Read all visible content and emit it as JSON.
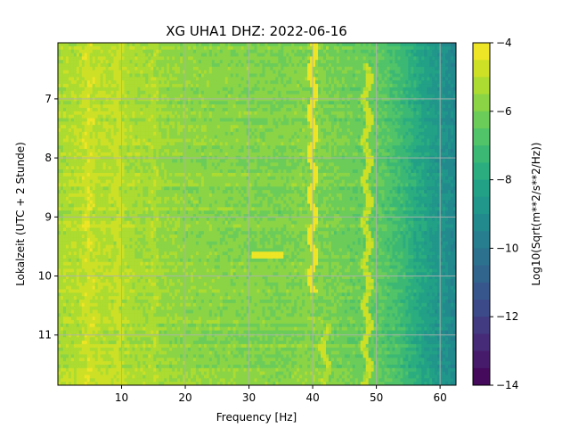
{
  "chart_data": {
    "type": "heatmap",
    "title": "XG UHA1  DHZ: 2022-06-16",
    "xlabel": "Frequency [Hz]",
    "ylabel": "Lokalzeit (UTC + 2 Stunde)",
    "colorbar_label": "Log10(Sqrt(m**2/s**2/Hz))",
    "xlim": [
      0,
      62.5
    ],
    "ylim": [
      11.85,
      6.05
    ],
    "clim": [
      -14,
      -4
    ],
    "colormap": "viridis",
    "colorbar_levels": 20,
    "grid": true,
    "x_ticks": [
      10,
      20,
      30,
      40,
      50,
      60
    ],
    "x_tick_labels": [
      "10",
      "20",
      "30",
      "40",
      "50",
      "60"
    ],
    "y_ticks": [
      7,
      8,
      9,
      10,
      11
    ],
    "y_tick_labels": [
      "7",
      "8",
      "9",
      "10",
      "11"
    ],
    "colorbar_ticks": [
      -4,
      -6,
      -8,
      -10,
      -12,
      -14
    ],
    "colorbar_tick_labels": [
      "−4",
      "−6",
      "−8",
      "−10",
      "−12",
      "−14"
    ],
    "spectral_profile": {
      "frequency_hz": [
        0,
        5,
        10,
        15,
        20,
        25,
        30,
        35,
        40,
        45,
        50,
        52,
        54,
        56,
        58,
        60,
        62.5
      ],
      "log10_amplitude": [
        -5.3,
        -5.0,
        -5.2,
        -5.5,
        -5.7,
        -5.8,
        -5.9,
        -6.0,
        -5.8,
        -6.2,
        -6.4,
        -6.8,
        -7.2,
        -7.8,
        -8.3,
        -8.8,
        -9.4
      ]
    },
    "features": [
      {
        "type": "line",
        "freq_hz": 4.8,
        "time_start": 6.05,
        "time_end": 11.85,
        "log10_amplitude": -4.6
      },
      {
        "type": "line",
        "freq_hz": 9.5,
        "time_start": 6.05,
        "time_end": 11.85,
        "log10_amplitude": -4.8
      },
      {
        "type": "line",
        "freq_hz": 15.0,
        "time_start": 6.05,
        "time_end": 11.85,
        "log10_amplitude": -5.1
      },
      {
        "type": "line",
        "freq_hz": 40.0,
        "time_start": 6.05,
        "time_end": 10.3,
        "log10_amplitude": -4.3
      },
      {
        "type": "line",
        "freq_hz": 48.5,
        "time_start": 6.4,
        "time_end": 11.85,
        "log10_amplitude": -4.9
      },
      {
        "type": "line",
        "freq_hz": 42.0,
        "time_start": 10.8,
        "time_end": 11.85,
        "log10_amplitude": -5.0
      },
      {
        "type": "burst",
        "freq_start_hz": 30.5,
        "freq_end_hz": 35.5,
        "time": 9.62,
        "log10_amplitude": -4.2
      }
    ]
  }
}
